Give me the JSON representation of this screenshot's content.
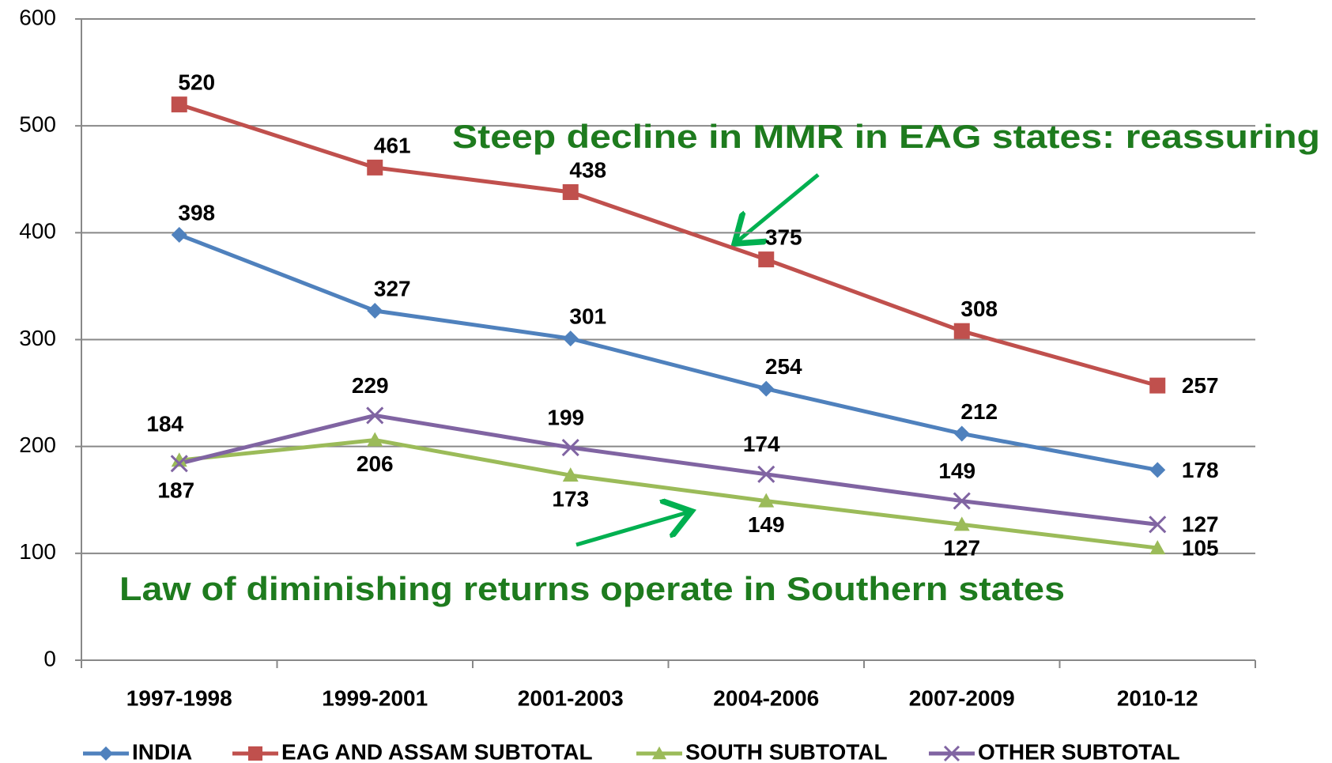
{
  "chart_data": {
    "type": "line",
    "categories": [
      "1997-1998",
      "1999-2001",
      "2001-2003",
      "2004-2006",
      "2007-2009",
      "2010-12"
    ],
    "series": [
      {
        "name": "INDIA",
        "color": "#4f81bd",
        "marker": "diamond",
        "values": [
          398,
          327,
          301,
          254,
          212,
          178
        ]
      },
      {
        "name": "EAG AND ASSAM SUBTOTAL",
        "color": "#c0504d",
        "marker": "square",
        "values": [
          520,
          461,
          438,
          375,
          308,
          257
        ]
      },
      {
        "name": "SOUTH SUBTOTAL",
        "color": "#9bbb59",
        "marker": "triangle",
        "values": [
          187,
          206,
          173,
          149,
          127,
          105
        ]
      },
      {
        "name": "OTHER SUBTOTAL",
        "color": "#8064a2",
        "marker": "x",
        "values": [
          184,
          229,
          199,
          174,
          149,
          127
        ]
      }
    ],
    "ylim": [
      0,
      600
    ],
    "yticks": [
      0,
      100,
      200,
      300,
      400,
      500,
      600
    ],
    "grid": true,
    "legend": "bottom",
    "annotations": [
      "Steep decline in MMR in EAG states: reassuring",
      "Law of diminishing returns operate in Southern states"
    ]
  }
}
